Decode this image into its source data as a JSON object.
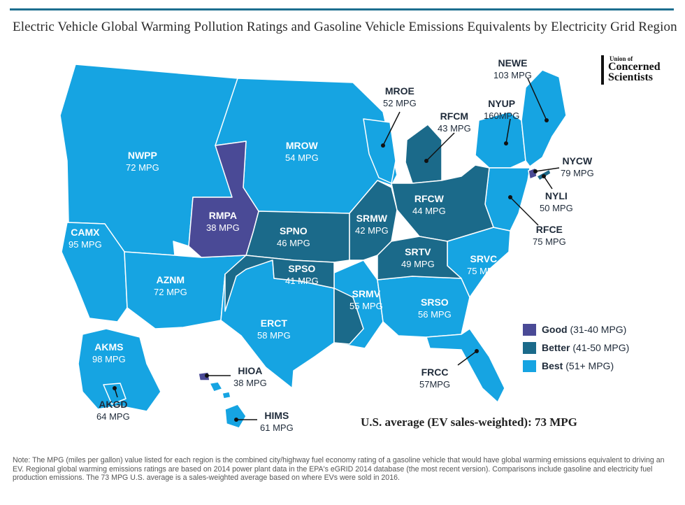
{
  "title": "Electric Vehicle Global Warming Pollution Ratings and Gasoline Vehicle Emissions Equivalents by Electricity Grid Region",
  "logo": {
    "line1": "Union of",
    "line2": "Concerned",
    "line3": "Scientists"
  },
  "colors": {
    "good": "#4a4a96",
    "better": "#1b6a8a",
    "best": "#16a4e2",
    "border": "#ffffff"
  },
  "regions": {
    "newe": {
      "code": "NEWE",
      "mpg": "103 MPG"
    },
    "nyup": {
      "code": "NYUP",
      "mpg": "160MPG"
    },
    "mroe": {
      "code": "MROE",
      "mpg": "52 MPG"
    },
    "rfcm": {
      "code": "RFCM",
      "mpg": "43 MPG"
    },
    "nycw": {
      "code": "NYCW",
      "mpg": "79 MPG"
    },
    "nyli": {
      "code": "NYLI",
      "mpg": "50 MPG"
    },
    "nwpp": {
      "code": "NWPP",
      "mpg": "72 MPG"
    },
    "mrow": {
      "code": "MROW",
      "mpg": "54 MPG"
    },
    "rmpa": {
      "code": "RMPA",
      "mpg": "38 MPG"
    },
    "spno": {
      "code": "SPNO",
      "mpg": "46 MPG"
    },
    "srmw": {
      "code": "SRMW",
      "mpg": "42 MPG"
    },
    "rfcw": {
      "code": "RFCW",
      "mpg": "44 MPG"
    },
    "rfce": {
      "code": "RFCE",
      "mpg": "75 MPG"
    },
    "camx": {
      "code": "CAMX",
      "mpg": "95 MPG"
    },
    "aznm": {
      "code": "AZNM",
      "mpg": "72 MPG"
    },
    "spso": {
      "code": "SPSO",
      "mpg": "41 MPG"
    },
    "srtv": {
      "code": "SRTV",
      "mpg": "49 MPG"
    },
    "srvc": {
      "code": "SRVC",
      "mpg": "75 MPG"
    },
    "srmv": {
      "code": "SRMV",
      "mpg": "55 MPG"
    },
    "srso": {
      "code": "SRSO",
      "mpg": "56 MPG"
    },
    "erct": {
      "code": "ERCT",
      "mpg": "58 MPG"
    },
    "frcc": {
      "code": "FRCC",
      "mpg": "57MPG"
    },
    "akms": {
      "code": "AKMS",
      "mpg": "98 MPG"
    },
    "akgd": {
      "code": "AKGD",
      "mpg": "64 MPG"
    },
    "hioa": {
      "code": "HIOA",
      "mpg": "38 MPG"
    },
    "hims": {
      "code": "HIMS",
      "mpg": "61 MPG"
    }
  },
  "legend": [
    {
      "label": "Good",
      "range": "(31-40 MPG)"
    },
    {
      "label": "Better",
      "range": "(41-50 MPG)"
    },
    {
      "label": "Best",
      "range": "(51+ MPG)"
    }
  ],
  "average": "U.S. average (EV sales-weighted): 73 MPG",
  "note": "Note: The MPG (miles per gallon) value listed for each region is the combined city/highway fuel economy rating of a gasoline vehicle that would have global warming emissions equivalent to driving an EV. Regional global warming emissions ratings are based on 2014 power plant data in the EPA's eGRID 2014 database (the most recent version). Comparisons include gasoline and electricity fuel production emissions. The 73 MPG U.S. average is a sales-weighted average based on where EVs were sold in 2016."
}
